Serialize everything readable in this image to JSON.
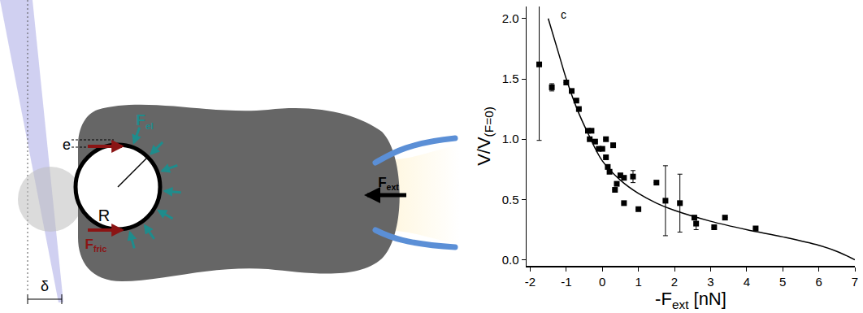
{
  "chart_data": {
    "type": "scatter",
    "annotations": [
      "c"
    ],
    "x_label": {
      "text": "-F",
      "sub": "ext",
      "after": " [nN]"
    },
    "y_label": {
      "text": "V/V",
      "sub": "(F=0)"
    },
    "xlim": [
      -2.1,
      7
    ],
    "xticks": [
      -2,
      -1,
      0,
      1,
      2,
      3,
      4,
      5,
      6,
      7
    ],
    "ylim": [
      -0.05,
      2.1
    ],
    "yticks": [
      {
        "value": 0,
        "label": "0.0"
      },
      {
        "value": 0.5,
        "label": "0.5"
      },
      {
        "value": 1,
        "label": "1.0"
      },
      {
        "value": 1.5,
        "label": "1.5"
      },
      {
        "value": 2,
        "label": "2.0"
      }
    ],
    "grid": false,
    "series": [
      {
        "type": "scatter",
        "marker": "square",
        "color": "#000000",
        "x": [
          -1.75,
          -1.4,
          -1.0,
          -0.85,
          -0.72,
          -0.65,
          -0.4,
          -0.3,
          -0.35,
          -0.2,
          0.0,
          -0.1,
          0.1,
          0.1,
          0.15,
          0.2,
          0.3,
          0.4,
          0.35,
          0.5,
          0.6,
          0.6,
          0.85,
          1.0,
          1.5,
          1.75,
          2.15,
          2.6,
          2.55,
          3.1,
          3.4,
          4.25
        ],
        "values": [
          1.62,
          1.43,
          1.47,
          1.4,
          1.32,
          1.25,
          1.07,
          1.07,
          1.0,
          0.98,
          0.92,
          0.92,
          1.0,
          0.85,
          0.77,
          0.73,
          0.95,
          0.63,
          0.58,
          0.7,
          0.68,
          0.47,
          0.69,
          0.42,
          0.64,
          0.49,
          0.47,
          0.3,
          0.35,
          0.27,
          0.35,
          0.26
        ],
        "error": [
          0.63,
          0.03,
          null,
          null,
          null,
          null,
          null,
          null,
          null,
          null,
          null,
          null,
          null,
          null,
          null,
          null,
          null,
          null,
          null,
          null,
          null,
          null,
          0.05,
          null,
          null,
          0.29,
          0.24,
          0.05,
          null,
          null,
          null,
          null
        ]
      },
      {
        "type": "line",
        "line_style": "solid",
        "color": "#000000",
        "x": [
          -1.5,
          -1.2,
          -1.0,
          -0.7,
          -0.4,
          0.0,
          0.5,
          1.0,
          1.5,
          2.0,
          3.0,
          4.0,
          5.0,
          6.0,
          6.5,
          6.8,
          7.0
        ],
        "values": [
          2.0,
          1.7,
          1.5,
          1.25,
          1.05,
          0.82,
          0.66,
          0.55,
          0.47,
          0.41,
          0.32,
          0.25,
          0.19,
          0.12,
          0.07,
          0.03,
          0.0
        ]
      }
    ],
    "legend": false
  },
  "diagram": {
    "labels": [
      {
        "text": "e"
      },
      {
        "text": "F",
        "sub": "el"
      },
      {
        "text": "F",
        "sub": "fric"
      },
      {
        "text": "R"
      },
      {
        "text": "F",
        "sub": "ext"
      },
      {
        "text": "δ"
      }
    ]
  }
}
